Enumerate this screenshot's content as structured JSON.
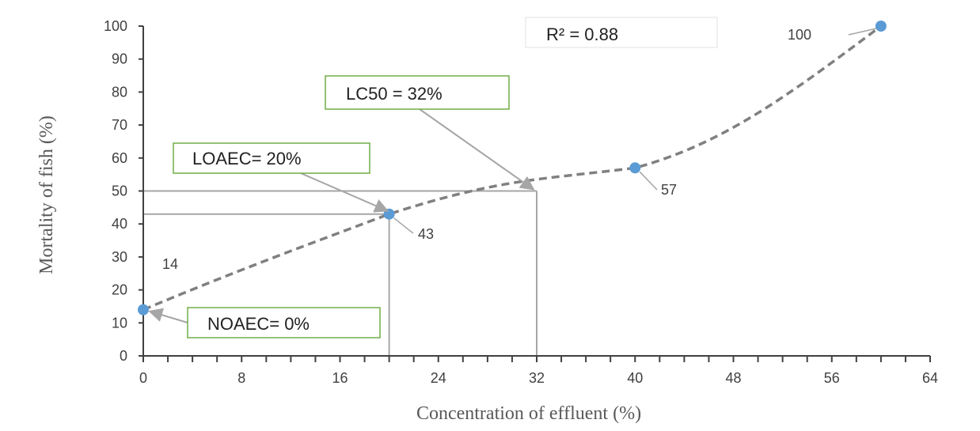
{
  "chart_data": {
    "type": "scatter",
    "title": "",
    "xlabel": "Concentration of effluent (%)",
    "ylabel": "Mortality of fish (%)",
    "xlim": [
      0,
      64
    ],
    "ylim": [
      0,
      100
    ],
    "xticks": [
      0,
      8,
      16,
      24,
      32,
      40,
      48,
      56,
      64
    ],
    "yticks": [
      0,
      10,
      20,
      30,
      40,
      50,
      60,
      70,
      80,
      90,
      100
    ],
    "grid": false,
    "series": [
      {
        "x": [
          0,
          20,
          40,
          60
        ],
        "y": [
          14,
          43,
          57,
          100
        ],
        "point_labels": [
          "14",
          "43",
          "57",
          "100"
        ],
        "color": "#5b9bd5",
        "trendline": {
          "type": "polynomial",
          "style": "dashed",
          "color": "#808080",
          "r2_label": "R² = 0.88"
        }
      }
    ],
    "annotations": [
      {
        "text": "NOAEC= 0%",
        "x": 0,
        "y": 14,
        "border_color": "#70ad47"
      },
      {
        "text": "LOAEC= 20%",
        "x": 20,
        "y": 43,
        "border_color": "#70ad47"
      },
      {
        "text": "LC50 = 32%",
        "x": 32,
        "y": 50,
        "border_color": "#70ad47"
      }
    ]
  }
}
